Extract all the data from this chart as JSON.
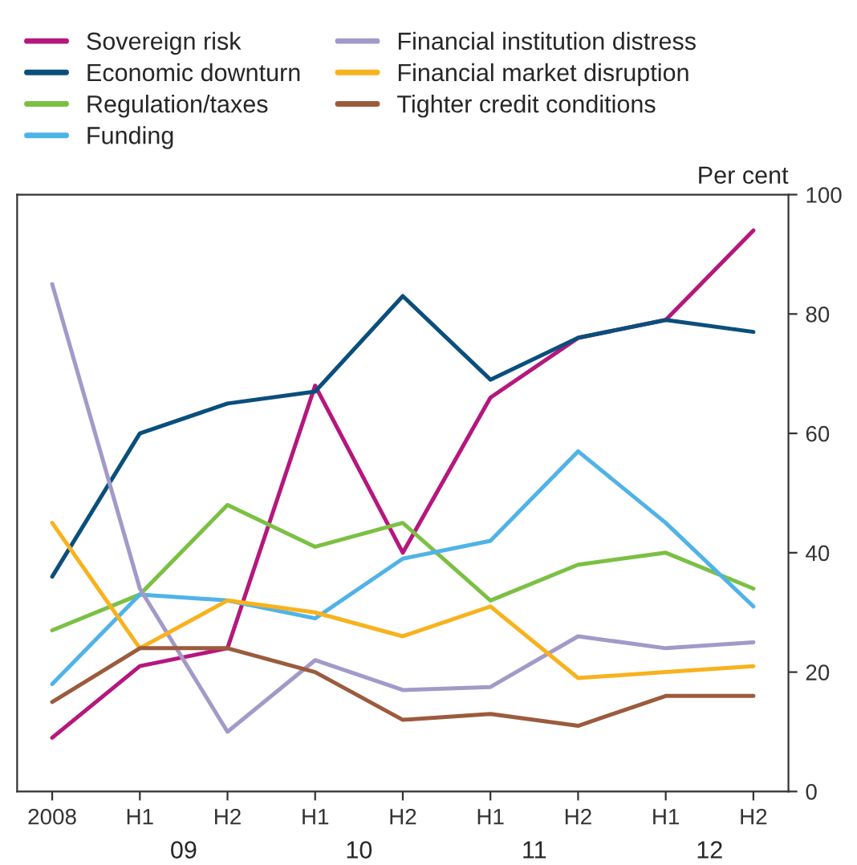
{
  "chart_data": {
    "type": "line",
    "ylabel": "Per cent",
    "categories": [
      "2008",
      "H1",
      "H2",
      "H1",
      "H2",
      "H1",
      "H2",
      "H1",
      "H2"
    ],
    "annotations": [
      "09",
      "10",
      "11",
      "12"
    ],
    "ylim": [
      0,
      100
    ],
    "yticks": [
      0,
      20,
      40,
      60,
      80,
      100
    ],
    "grid": false,
    "legend": "top",
    "marker": "none",
    "line_style": "solid",
    "series": [
      {
        "name": "Sovereign risk",
        "color": "#b5177d",
        "values": [
          9,
          21,
          24,
          68,
          40,
          66,
          76,
          79,
          94
        ]
      },
      {
        "name": "Economic downturn",
        "color": "#0a4f7c",
        "values": [
          36,
          60,
          65,
          67,
          83,
          69,
          76,
          79,
          77
        ]
      },
      {
        "name": "Regulation/taxes",
        "color": "#7bc043",
        "values": [
          27,
          33,
          48,
          41,
          45,
          32,
          38,
          40,
          34
        ]
      },
      {
        "name": "Funding",
        "color": "#4fb3e8",
        "values": [
          18,
          33,
          32,
          29,
          39,
          42,
          57,
          45,
          31
        ]
      },
      {
        "name": "Financial institution distress",
        "color": "#a399c9",
        "values": [
          85,
          34,
          10,
          22,
          17,
          17.5,
          26,
          24,
          25
        ]
      },
      {
        "name": "Financial market disruption",
        "color": "#f8b21e",
        "values": [
          45,
          24,
          32,
          30,
          26,
          31,
          19,
          20,
          21
        ]
      },
      {
        "name": "Tighter credit conditions",
        "color": "#9c5b3d",
        "values": [
          15,
          24,
          24,
          20,
          12,
          13,
          11,
          16,
          16
        ]
      }
    ]
  }
}
